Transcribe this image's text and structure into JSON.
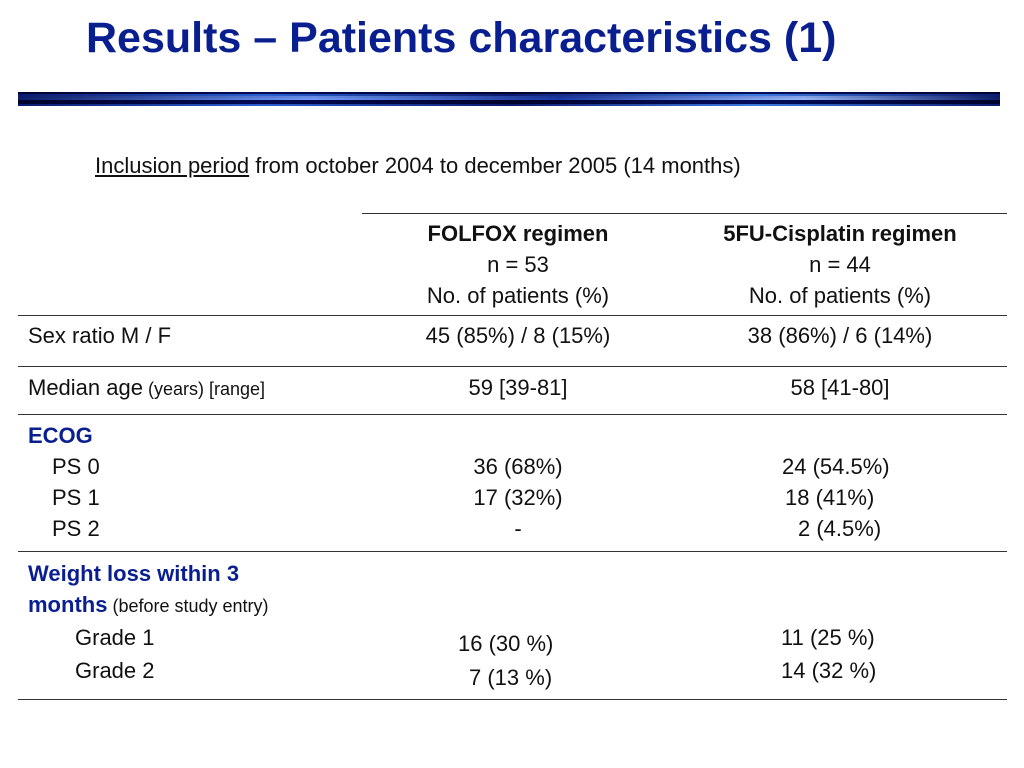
{
  "title": "Results – Patients characteristics (1)",
  "inclusion": {
    "label": "Inclusion period",
    "text": " from october 2004 to december 2005 (14 months)"
  },
  "table": {
    "columns": [
      {
        "name": "FOLFOX regimen",
        "n": "n = 53",
        "unit": "No. of patients (%)"
      },
      {
        "name": "5FU-Cisplatin regimen",
        "n": "n = 44",
        "unit": "No. of patients (%)"
      }
    ],
    "sex": {
      "label": "Sex ratio M / F",
      "folfox": "45 (85%) / 8 (15%)",
      "cis": "38 (86%) / 6 (14%)"
    },
    "age": {
      "label": "Median age",
      "label_small": " (years) [range]",
      "folfox": "59 [39-81]",
      "cis": "58 [41-80]"
    },
    "ecog": {
      "label": "ECOG",
      "rows": [
        {
          "label": "PS 0",
          "folfox": "36 (68%)",
          "cis": "24 (54.5%)"
        },
        {
          "label": "PS 1",
          "folfox": "17 (32%)",
          "cis": "18 (41%)"
        },
        {
          "label": "PS 2",
          "folfox": "-",
          "cis": "2 (4.5%)"
        }
      ]
    },
    "weight": {
      "label_line1": "Weight loss within 3",
      "label_line2": "months",
      "label_small": " (before study entry)",
      "rows": [
        {
          "label": "Grade 1",
          "folfox": "16 (30 %)",
          "cis": "11 (25 %)"
        },
        {
          "label": "Grade 2",
          "folfox": "7 (13 %)",
          "cis": "14 (32 %)"
        }
      ]
    }
  }
}
